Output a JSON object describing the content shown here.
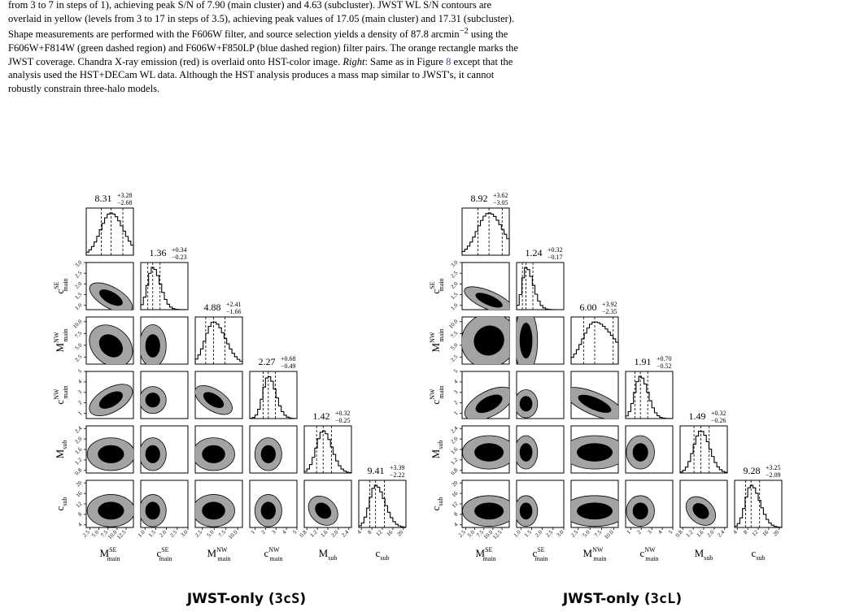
{
  "caption": {
    "line1": "from 3 to 7 in steps of 1), achieving peak S/N of 7.90 (main cluster) and 4.63 (subcluster). JWST WL S/N contours are",
    "line2": "overlaid in yellow (levels from 3 to 17 in steps of 3.5), achieving peak values of 17.05 (main cluster) and 17.31 (subcluster).",
    "line3_a": "Shape measurements are performed with the F606W filter, and source selection yields a density of 87.8 arcmin",
    "line3_sup": "−2",
    "line3_b": " using the",
    "line4": "F606W+F814W (green dashed region) and F606W+F850LP (blue dashed region) filter pairs. The orange rectangle marks the",
    "line5_a": "JWST coverage. Chandra X-ray emission (red) is overlaid onto HST-color image. ",
    "line5_italic": "Right",
    "line5_b": ": Same as in Figure ",
    "line5_ref": "8",
    "line5_c": " except that the",
    "line6": "analysis used the HST+DECam WL data. Although the HST analysis produces a mass map similar to JWST's, it cannot",
    "line7": "robustly constrain three-halo models."
  },
  "chart_data": [
    {
      "type": "corner",
      "title": "JWST-only (3cS)",
      "title_main": "JWST-only (",
      "title_code": "3cS",
      "title_close": ")",
      "parameters": [
        {
          "name": "M_main^SE",
          "base": "M",
          "sub": "main",
          "sup": "SE",
          "median": 8.31,
          "err_plus": 3.28,
          "err_minus": 2.68,
          "median_str": "8.31",
          "plus_str": "+3.28",
          "minus_str": "−2.68",
          "range": [
            1.5,
            14.5
          ],
          "ticks": [
            2.5,
            5.0,
            7.5,
            10.0,
            12.5
          ],
          "tick_labels": [
            "2.5",
            "5.0",
            "7.5",
            "10.0",
            "12.5"
          ]
        },
        {
          "name": "c_main^SE",
          "base": "c",
          "sub": "main",
          "sup": "SE",
          "median": 1.36,
          "err_plus": 0.34,
          "err_minus": 0.23,
          "median_str": "1.36",
          "plus_str": "+0.34",
          "minus_str": "−0.23",
          "range": [
            0.8,
            3.0
          ],
          "ticks": [
            1.0,
            1.5,
            2.0,
            2.5,
            3.0
          ],
          "tick_labels": [
            "1.0",
            "1.5",
            "2.0",
            "2.5",
            "3.0"
          ]
        },
        {
          "name": "M_main^NW",
          "base": "M",
          "sub": "main",
          "sup": "NW",
          "median": 4.88,
          "err_plus": 2.41,
          "err_minus": 1.66,
          "median_str": "4.88",
          "plus_str": "+2.41",
          "minus_str": "−1.66",
          "range": [
            1.0,
            11.0
          ],
          "ticks": [
            2.5,
            5.0,
            7.5,
            10.0
          ],
          "tick_labels": [
            "2.5",
            "5.0",
            "7.5",
            "10.0"
          ]
        },
        {
          "name": "c_main^NW",
          "base": "c",
          "sub": "main",
          "sup": "NW",
          "median": 2.27,
          "err_plus": 0.68,
          "err_minus": 0.49,
          "median_str": "2.27",
          "plus_str": "+0.68",
          "minus_str": "−0.49",
          "range": [
            0.5,
            5.0
          ],
          "ticks": [
            1,
            2,
            3,
            4,
            5
          ],
          "tick_labels": [
            "1",
            "2",
            "3",
            "4",
            "5"
          ]
        },
        {
          "name": "M_sub",
          "base": "M",
          "sub": "sub",
          "sup": "",
          "median": 1.42,
          "err_plus": 0.32,
          "err_minus": 0.25,
          "median_str": "1.42",
          "plus_str": "+0.32",
          "minus_str": "−0.25",
          "range": [
            0.7,
            2.5
          ],
          "ticks": [
            0.8,
            1.2,
            1.6,
            2.0,
            2.4
          ],
          "tick_labels": [
            "0.8",
            "1.2",
            "1.6",
            "2.0",
            "2.4"
          ]
        },
        {
          "name": "c_sub",
          "base": "c",
          "sub": "sub",
          "sup": "",
          "median": 9.41,
          "err_plus": 3.39,
          "err_minus": 2.22,
          "median_str": "9.41",
          "plus_str": "+3.39",
          "minus_str": "−2.22",
          "range": [
            3.0,
            21.0
          ],
          "ticks": [
            4,
            8,
            12,
            16,
            20
          ],
          "tick_labels": [
            "4",
            "8",
            "12",
            "16",
            "20"
          ]
        }
      ]
    },
    {
      "type": "corner",
      "title": "JWST-only (3cL)",
      "title_main": "JWST-only (",
      "title_code": "3cL",
      "title_close": ")",
      "parameters": [
        {
          "name": "M_main^SE",
          "base": "M",
          "sub": "main",
          "sup": "SE",
          "median": 8.92,
          "err_plus": 3.62,
          "err_minus": 3.05,
          "median_str": "8.92",
          "plus_str": "+3.62",
          "minus_str": "−3.05",
          "range": [
            1.5,
            14.5
          ],
          "ticks": [
            2.5,
            5.0,
            7.5,
            10.0,
            12.5
          ],
          "tick_labels": [
            "2.5",
            "5.0",
            "7.5",
            "10.0",
            "12.5"
          ]
        },
        {
          "name": "c_main^SE",
          "base": "c",
          "sub": "main",
          "sup": "SE",
          "median": 1.24,
          "err_plus": 0.32,
          "err_minus": 0.17,
          "median_str": "1.24",
          "plus_str": "+0.32",
          "minus_str": "−0.17",
          "range": [
            0.8,
            3.0
          ],
          "ticks": [
            1.0,
            1.5,
            2.0,
            2.5,
            3.0
          ],
          "tick_labels": [
            "1.0",
            "1.5",
            "2.0",
            "2.5",
            "3.0"
          ]
        },
        {
          "name": "M_main^NW",
          "base": "M",
          "sub": "main",
          "sup": "NW",
          "median": 6.0,
          "err_plus": 3.92,
          "err_minus": 2.35,
          "median_str": "6.00",
          "plus_str": "+3.92",
          "minus_str": "−2.35",
          "range": [
            1.0,
            11.0
          ],
          "ticks": [
            2.5,
            5.0,
            7.5,
            10.0
          ],
          "tick_labels": [
            "2.5",
            "5.0",
            "7.5",
            "10.0"
          ]
        },
        {
          "name": "c_main^NW",
          "base": "c",
          "sub": "main",
          "sup": "NW",
          "median": 1.91,
          "err_plus": 0.7,
          "err_minus": 0.52,
          "median_str": "1.91",
          "plus_str": "+0.70",
          "minus_str": "−0.52",
          "range": [
            0.5,
            5.0
          ],
          "ticks": [
            1,
            2,
            3,
            4,
            5
          ],
          "tick_labels": [
            "1",
            "2",
            "3",
            "4",
            "5"
          ]
        },
        {
          "name": "M_sub",
          "base": "M",
          "sub": "sub",
          "sup": "",
          "median": 1.49,
          "err_plus": 0.32,
          "err_minus": 0.26,
          "median_str": "1.49",
          "plus_str": "+0.32",
          "minus_str": "−0.26",
          "range": [
            0.7,
            2.5
          ],
          "ticks": [
            0.8,
            1.2,
            1.6,
            2.0,
            2.4
          ],
          "tick_labels": [
            "0.8",
            "1.2",
            "1.6",
            "2.0",
            "2.4"
          ]
        },
        {
          "name": "c_sub",
          "base": "c",
          "sub": "sub",
          "sup": "",
          "median": 9.28,
          "err_plus": 3.25,
          "err_minus": 2.09,
          "median_str": "9.28",
          "plus_str": "+3.25",
          "minus_str": "−2.09",
          "range": [
            3.0,
            21.0
          ],
          "ticks": [
            4,
            8,
            12,
            16,
            20
          ],
          "tick_labels": [
            "4",
            "8",
            "12",
            "16",
            "20"
          ]
        }
      ]
    }
  ]
}
